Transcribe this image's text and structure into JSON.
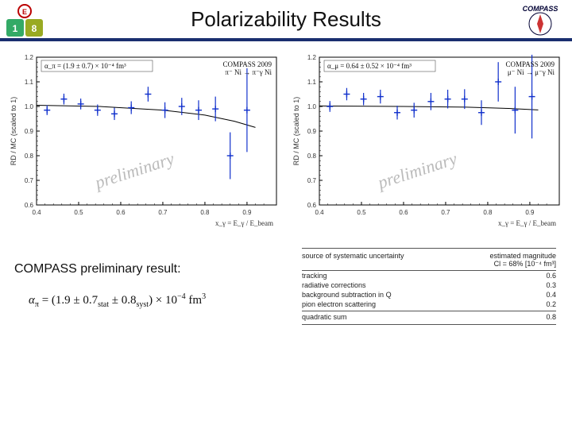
{
  "title": "Polarizability Results",
  "header": {
    "underline_color": "#1a2f6f",
    "title_fontsize": 26
  },
  "result_label": "COMPASS preliminary result:",
  "formula": "α_π = (1.9 ± 0.7_stat ± 0.8_syst) × 10⁻⁴ fm³",
  "watermark": "preliminary",
  "watermark_color": "#bbbbbb",
  "watermark_fontsize": 22,
  "chart_left": {
    "type": "scatter-errorbar",
    "alpha_label": "α_π = (1.9 ± 0.7) × 10⁻⁴ fm³",
    "exp_label_1": "COMPASS 2009",
    "exp_label_2": "π⁻ Ni → π⁻γ Ni",
    "xlabel": "x_γ = E_γ / E_beam",
    "ylabel": "RD / MC (scaled to 1)",
    "xlim": [
      0.4,
      0.97
    ],
    "ylim": [
      0.6,
      1.2
    ],
    "xticks": [
      0.4,
      0.5,
      0.6,
      0.7,
      0.8,
      0.9
    ],
    "yticks": [
      0.6,
      0.7,
      0.8,
      0.9,
      1.0,
      1.1,
      1.2
    ],
    "background_color": "#ffffff",
    "axis_color": "#000000",
    "tick_fontsize": 8,
    "label_fontsize": 9,
    "marker_color": "#1030cc",
    "marker_style": "plus",
    "fit_color": "#000000",
    "line_width": 1,
    "points": [
      {
        "x": 0.425,
        "y": 0.985,
        "e": 0.02
      },
      {
        "x": 0.465,
        "y": 1.03,
        "e": 0.022
      },
      {
        "x": 0.505,
        "y": 1.01,
        "e": 0.022
      },
      {
        "x": 0.545,
        "y": 0.985,
        "e": 0.023
      },
      {
        "x": 0.585,
        "y": 0.97,
        "e": 0.025
      },
      {
        "x": 0.625,
        "y": 0.995,
        "e": 0.026
      },
      {
        "x": 0.665,
        "y": 1.05,
        "e": 0.03
      },
      {
        "x": 0.705,
        "y": 0.985,
        "e": 0.032
      },
      {
        "x": 0.745,
        "y": 1.0,
        "e": 0.035
      },
      {
        "x": 0.785,
        "y": 0.985,
        "e": 0.04
      },
      {
        "x": 0.825,
        "y": 0.99,
        "e": 0.05
      },
      {
        "x": 0.86,
        "y": 0.8,
        "e": 0.095
      },
      {
        "x": 0.9,
        "y": 0.985,
        "e": 0.17
      }
    ],
    "fit_curve": [
      {
        "x": 0.4,
        "y": 1.005
      },
      {
        "x": 0.55,
        "y": 1.0
      },
      {
        "x": 0.7,
        "y": 0.985
      },
      {
        "x": 0.8,
        "y": 0.965
      },
      {
        "x": 0.87,
        "y": 0.94
      },
      {
        "x": 0.92,
        "y": 0.915
      }
    ]
  },
  "chart_right": {
    "type": "scatter-errorbar",
    "alpha_label": "α_μ = 0.64 ± 0.52 × 10⁻⁴ fm³",
    "exp_label_1": "COMPASS 2009",
    "exp_label_2": "μ⁻ Ni → μ⁻γ Ni",
    "xlabel": "x_γ = E_γ / E_beam",
    "ylabel": "RD / MC (scaled to 1)",
    "xlim": [
      0.4,
      0.97
    ],
    "ylim": [
      0.6,
      1.2
    ],
    "xticks": [
      0.4,
      0.5,
      0.6,
      0.7,
      0.8,
      0.9
    ],
    "yticks": [
      0.6,
      0.7,
      0.8,
      0.9,
      1.0,
      1.1,
      1.2
    ],
    "background_color": "#ffffff",
    "axis_color": "#000000",
    "tick_fontsize": 8,
    "label_fontsize": 9,
    "marker_color": "#1030cc",
    "marker_style": "plus",
    "fit_color": "#000000",
    "line_width": 1,
    "points": [
      {
        "x": 0.425,
        "y": 1.0,
        "e": 0.022
      },
      {
        "x": 0.465,
        "y": 1.05,
        "e": 0.025
      },
      {
        "x": 0.505,
        "y": 1.03,
        "e": 0.025
      },
      {
        "x": 0.545,
        "y": 1.04,
        "e": 0.028
      },
      {
        "x": 0.585,
        "y": 0.975,
        "e": 0.028
      },
      {
        "x": 0.625,
        "y": 0.985,
        "e": 0.03
      },
      {
        "x": 0.665,
        "y": 1.02,
        "e": 0.035
      },
      {
        "x": 0.705,
        "y": 1.03,
        "e": 0.038
      },
      {
        "x": 0.745,
        "y": 1.03,
        "e": 0.04
      },
      {
        "x": 0.785,
        "y": 0.975,
        "e": 0.05
      },
      {
        "x": 0.825,
        "y": 1.1,
        "e": 0.08
      },
      {
        "x": 0.865,
        "y": 0.985,
        "e": 0.095
      },
      {
        "x": 0.905,
        "y": 1.04,
        "e": 0.17
      }
    ],
    "fit_curve": [
      {
        "x": 0.4,
        "y": 1.002
      },
      {
        "x": 0.6,
        "y": 1.0
      },
      {
        "x": 0.75,
        "y": 0.997
      },
      {
        "x": 0.85,
        "y": 0.992
      },
      {
        "x": 0.92,
        "y": 0.986
      }
    ]
  },
  "syst_table": {
    "header_col1": "source of systematic uncertainty",
    "header_col2_line1": "estimated magnitude",
    "header_col2_line2": "Cl = 68% [10⁻⁴ fm³]",
    "rows": [
      {
        "label": "tracking",
        "value": "0.6"
      },
      {
        "label": "radiative corrections",
        "value": "0.3"
      },
      {
        "label": "background subtraction in Q",
        "value": "0.4"
      },
      {
        "label": "pion electron scattering",
        "value": "0.2"
      }
    ],
    "sum_label": "quadratic sum",
    "sum_value": "0.8",
    "fontsize": 9,
    "text_color": "#222222",
    "rule_color": "#555555"
  }
}
